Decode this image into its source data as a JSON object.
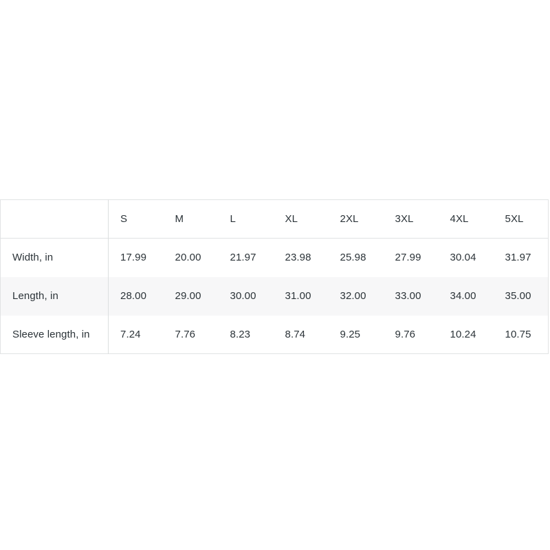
{
  "size_table": {
    "kind": "product-size-chart",
    "unit": "in",
    "columns": [
      "S",
      "M",
      "L",
      "XL",
      "2XL",
      "3XL",
      "4XL",
      "5XL"
    ],
    "rows": [
      {
        "label": "Width, in",
        "values": [
          "17.99",
          "20.00",
          "21.97",
          "23.98",
          "25.98",
          "27.99",
          "30.04",
          "31.97"
        ]
      },
      {
        "label": "Length, in",
        "values": [
          "28.00",
          "29.00",
          "30.00",
          "31.00",
          "32.00",
          "33.00",
          "34.00",
          "35.00"
        ]
      },
      {
        "label": "Sleeve length, in",
        "values": [
          "7.24",
          "7.76",
          "8.23",
          "8.74",
          "9.25",
          "9.76",
          "10.24",
          "10.75"
        ]
      }
    ],
    "colors": {
      "background": "#ffffff",
      "text": "#2b3338",
      "border": "#e0e2e3",
      "zebra_row": "#f7f7f8"
    }
  }
}
